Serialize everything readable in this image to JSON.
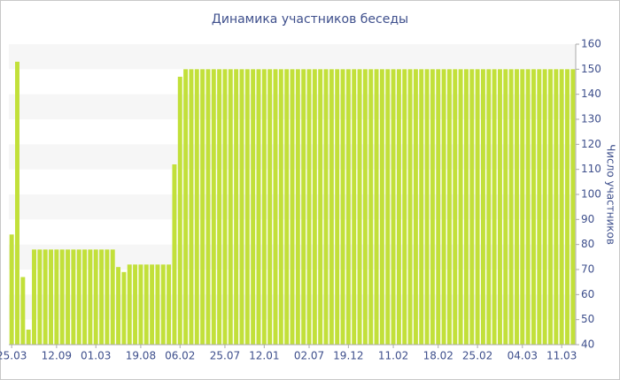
{
  "chart_data": {
    "type": "bar",
    "title": "Динамика участников беседы",
    "y_label": "Число участников",
    "categories": [
      "25.03",
      null,
      null,
      null,
      null,
      null,
      null,
      null,
      "12.09",
      null,
      null,
      null,
      null,
      null,
      null,
      "01.03",
      null,
      null,
      null,
      null,
      null,
      null,
      null,
      "19.08",
      null,
      null,
      null,
      null,
      null,
      null,
      "06.02",
      null,
      null,
      null,
      null,
      null,
      null,
      null,
      "25.07",
      null,
      null,
      null,
      null,
      null,
      null,
      "12.01",
      null,
      null,
      null,
      null,
      null,
      null,
      null,
      "02.07",
      null,
      null,
      null,
      null,
      null,
      null,
      "19.12",
      null,
      null,
      null,
      null,
      null,
      null,
      null,
      "11.02",
      null,
      null,
      null,
      null,
      null,
      null,
      null,
      "18.02",
      null,
      null,
      null,
      null,
      null,
      null,
      "25.02",
      null,
      null,
      null,
      null,
      null,
      null,
      null,
      "04.03",
      null,
      null,
      null,
      null,
      null,
      null,
      "11.03",
      null,
      null
    ],
    "values": [
      84,
      153,
      67,
      46,
      78,
      78,
      78,
      78,
      78,
      78,
      78,
      78,
      78,
      78,
      78,
      78,
      78,
      78,
      78,
      71,
      69,
      72,
      72,
      72,
      72,
      72,
      72,
      72,
      72,
      112,
      147,
      150,
      150,
      150,
      150,
      150,
      150,
      150,
      150,
      150,
      150,
      150,
      150,
      150,
      150,
      150,
      150,
      150,
      150,
      150,
      150,
      150,
      150,
      150,
      150,
      150,
      150,
      150,
      150,
      150,
      150,
      150,
      150,
      150,
      150,
      150,
      150,
      150,
      150,
      150,
      150,
      150,
      150,
      150,
      150,
      150,
      150,
      150,
      150,
      150,
      150,
      150,
      150,
      150,
      150,
      150,
      150,
      150,
      150,
      150,
      150,
      150,
      150,
      150,
      150,
      150,
      150,
      150,
      150,
      150,
      150
    ],
    "color": "#c2e03a",
    "ylim": [
      40,
      160
    ],
    "yticks": [
      40,
      50,
      60,
      70,
      80,
      90,
      100,
      110,
      120,
      130,
      140,
      150,
      160
    ],
    "grid": "bands",
    "y_axis_side": "right"
  }
}
